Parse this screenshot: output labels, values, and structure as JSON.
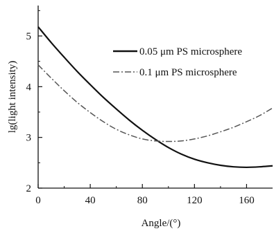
{
  "chart_data": {
    "type": "line",
    "xlabel": "Angle/(°)",
    "ylabel": "lg(light intensity)",
    "xlim": [
      0,
      180
    ],
    "ylim": [
      2,
      5.6
    ],
    "xticks": [
      0,
      40,
      80,
      120,
      160
    ],
    "yticks": [
      2,
      3,
      4,
      5
    ],
    "grid": false,
    "legend_position": "top-right",
    "series": [
      {
        "name": "0.05 μm PS microsphere",
        "style": "solid",
        "color": "#111111",
        "x": [
          0,
          10,
          20,
          30,
          40,
          50,
          60,
          70,
          80,
          90,
          100,
          110,
          120,
          130,
          140,
          150,
          160,
          170,
          180
        ],
        "y": [
          5.18,
          4.87,
          4.58,
          4.3,
          4.04,
          3.79,
          3.56,
          3.34,
          3.14,
          2.96,
          2.8,
          2.67,
          2.57,
          2.5,
          2.45,
          2.42,
          2.41,
          2.42,
          2.44
        ]
      },
      {
        "name": "0.1 μm PS microsphere",
        "style": "dashdot",
        "color": "#555555",
        "x": [
          0,
          10,
          20,
          30,
          40,
          50,
          60,
          70,
          80,
          90,
          100,
          110,
          120,
          130,
          140,
          150,
          160,
          170,
          180
        ],
        "y": [
          4.43,
          4.17,
          3.92,
          3.69,
          3.49,
          3.31,
          3.16,
          3.05,
          2.97,
          2.93,
          2.92,
          2.93,
          2.97,
          3.03,
          3.11,
          3.2,
          3.31,
          3.43,
          3.58
        ]
      }
    ]
  }
}
